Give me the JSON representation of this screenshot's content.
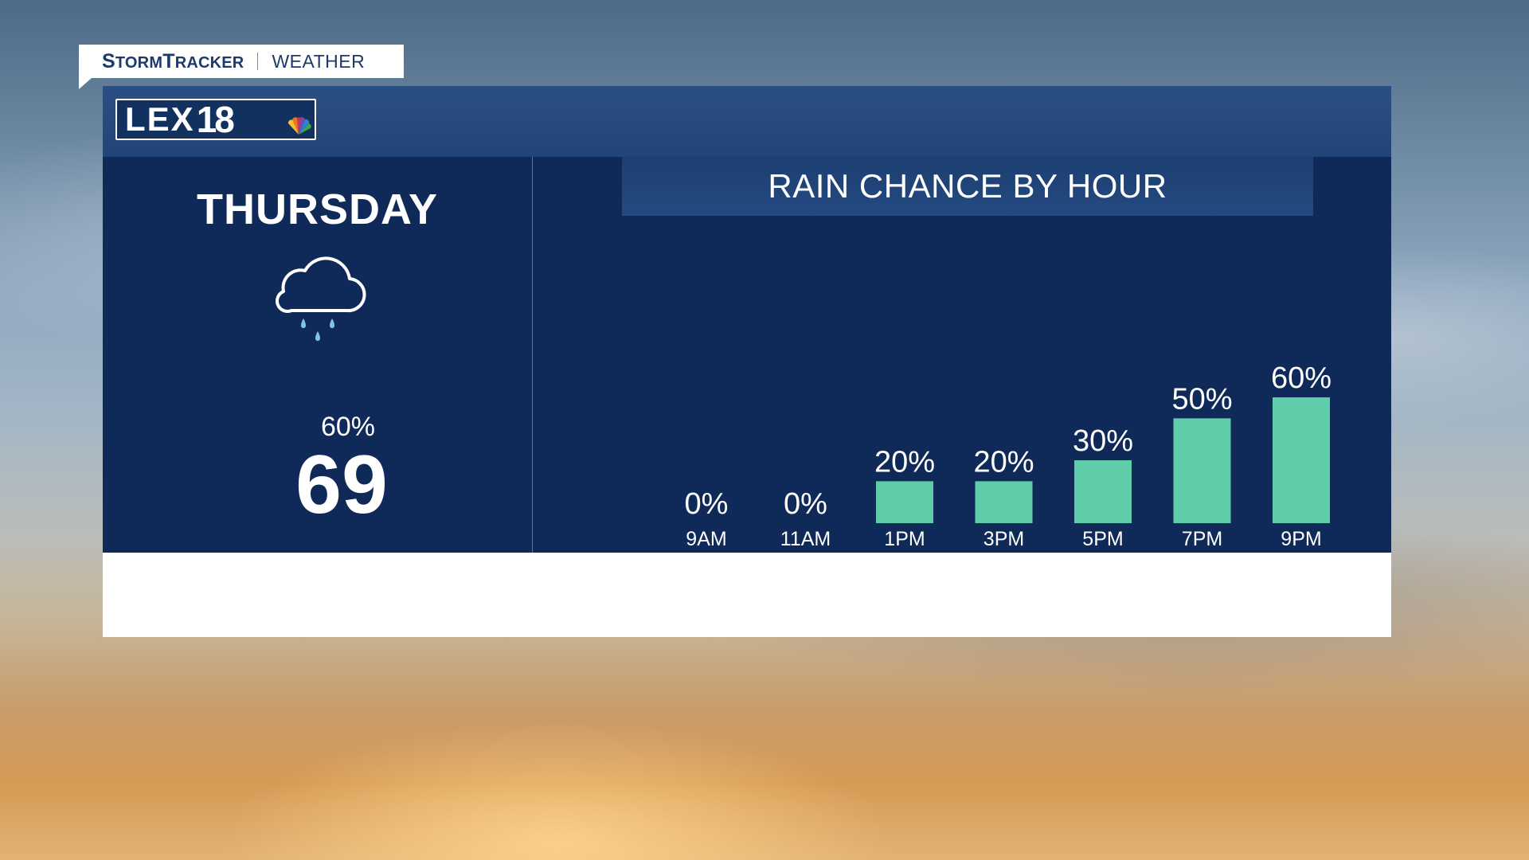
{
  "brand": {
    "tag_name": "StormTracker",
    "tag_sub": "WEATHER",
    "logo_text": "LEX",
    "logo_number": "18"
  },
  "forecast": {
    "day": "THURSDAY",
    "icon": "rain-cloud-icon",
    "precip_chance": "60%",
    "temperature": "69"
  },
  "colors": {
    "panel": "#0f2a58",
    "bar": "#5fcdaa",
    "rain_drop": "#7fc3ea"
  },
  "chart_data": {
    "type": "bar",
    "title": "RAIN CHANCE BY HOUR",
    "categories": [
      "9AM",
      "11AM",
      "1PM",
      "3PM",
      "5PM",
      "7PM",
      "9PM"
    ],
    "values": [
      0,
      0,
      20,
      20,
      30,
      50,
      60
    ],
    "value_labels": [
      "0%",
      "0%",
      "20%",
      "20%",
      "30%",
      "50%",
      "60%"
    ],
    "ylim": [
      0,
      60
    ],
    "grid": false,
    "legend": "none"
  }
}
